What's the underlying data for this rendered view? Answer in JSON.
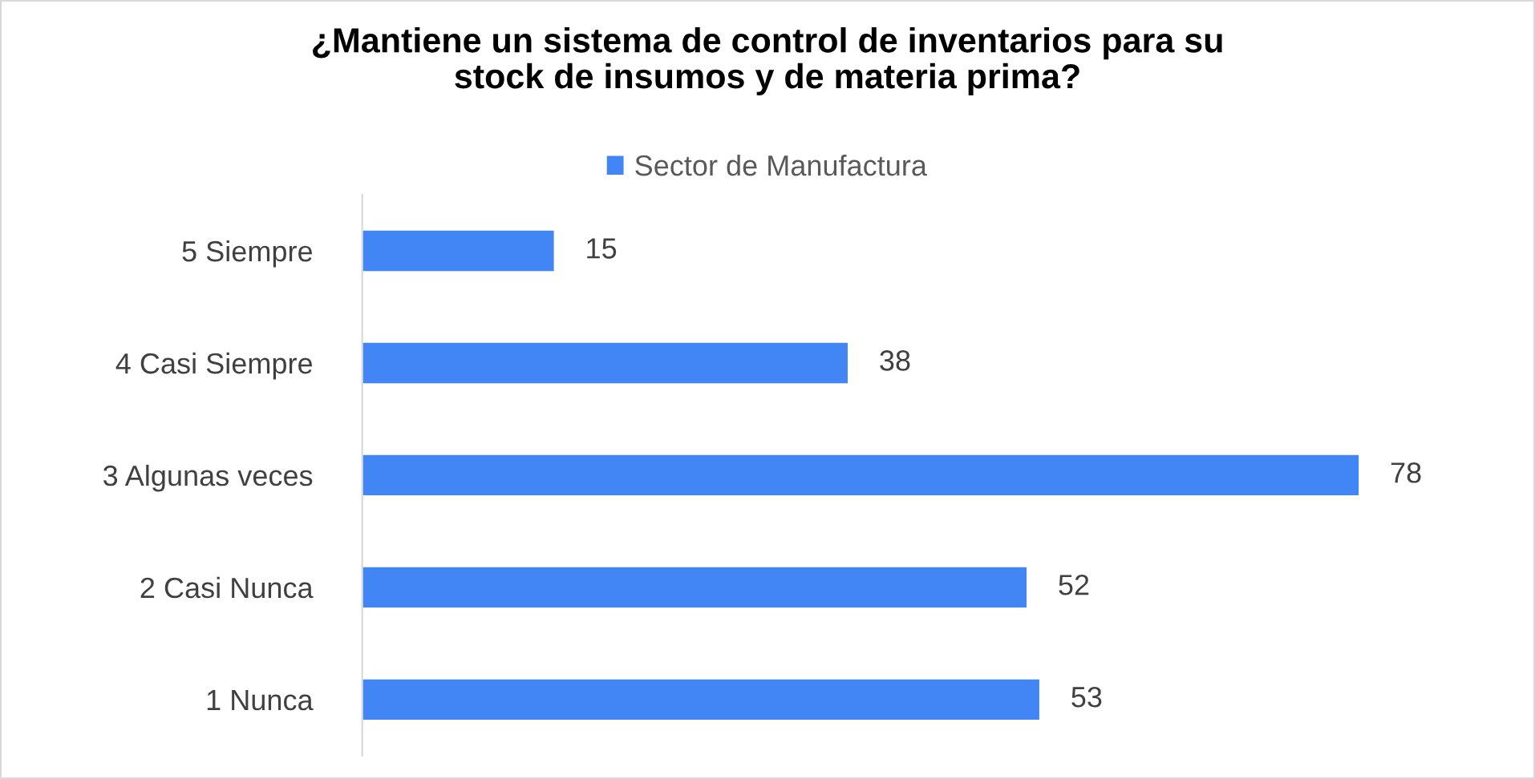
{
  "chart_data": {
    "type": "bar",
    "orientation": "horizontal",
    "title": "¿Mantiene un sistema de control de inventarios para su\nstock de insumos y de materia prima?",
    "categories": [
      "5 Siempre",
      "4 Casi Siempre",
      "3 Algunas veces",
      "2 Casi Nunca",
      "1 Nunca"
    ],
    "series": [
      {
        "name": "Sector de Manufactura",
        "color": "#4285f4",
        "values": [
          15,
          38,
          78,
          52,
          53
        ]
      }
    ],
    "data_labels": true,
    "legend": "top",
    "grid": false
  }
}
